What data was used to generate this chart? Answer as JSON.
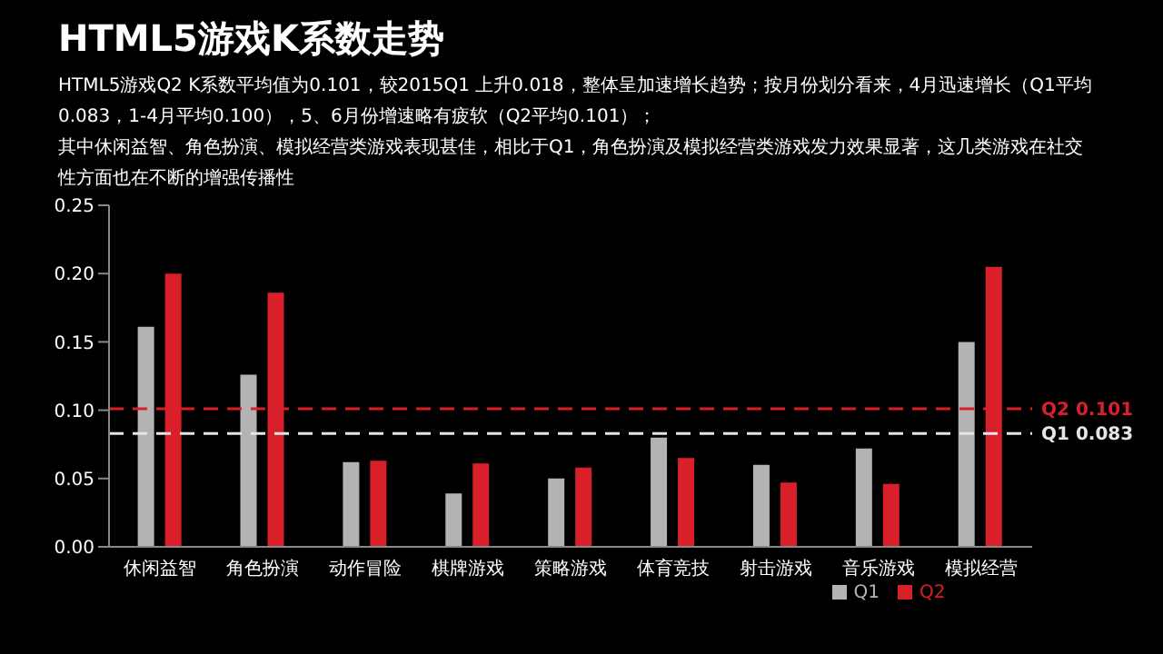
{
  "chart_data": {
    "type": "bar",
    "title": "HTML5游戏K系数走势",
    "subtitle": "HTML5游戏Q2 K系数平均值为0.101，较2015Q1 上升0.018，整体呈加速增长趋势；按月份划分看来，4月迅速增长（Q1平均0.083，1-4月平均0.100），5、6月份增速略有疲软（Q2平均0.101）；",
    "annotations": [
      "其中休闲益智、角色扮演、模拟经营类游戏表现甚佳，相比于Q1，角色扮演及模拟经营类游戏发力效果显著，这几类游戏在社交性方面也在不断的增强传播性"
    ],
    "categories": [
      "休闲益智",
      "角色扮演",
      "动作冒险",
      "棋牌游戏",
      "策略游戏",
      "体育竞技",
      "射击游戏",
      "音乐游戏",
      "模拟经营"
    ],
    "series": [
      {
        "name": "Q1",
        "color": "#b3b3b3",
        "values": [
          0.161,
          0.126,
          0.062,
          0.039,
          0.05,
          0.08,
          0.06,
          0.072,
          0.15
        ]
      },
      {
        "name": "Q2",
        "color": "#d9202a",
        "values": [
          0.2,
          0.186,
          0.063,
          0.061,
          0.058,
          0.065,
          0.047,
          0.046,
          0.205
        ]
      }
    ],
    "ylim": [
      0,
      0.25
    ],
    "yticks": [
      {
        "value": 0,
        "label": "0.00"
      },
      {
        "value": 0.05,
        "label": "0.05"
      },
      {
        "value": 0.1,
        "label": "0.10"
      },
      {
        "value": 0.15,
        "label": "0.15"
      },
      {
        "value": 0.2,
        "label": "0.20"
      },
      {
        "value": 0.25,
        "label": "0.25"
      }
    ],
    "ref_lines": [
      {
        "axis": "y",
        "value": 0.101,
        "label": "Q2  0.101",
        "color": "#d9202a",
        "line_style": "dashed"
      },
      {
        "axis": "y",
        "value": 0.083,
        "label": "Q1  0.083",
        "color": "#e6e6e6",
        "line_style": "dashed"
      }
    ],
    "grid": false,
    "legend": "bottom"
  }
}
